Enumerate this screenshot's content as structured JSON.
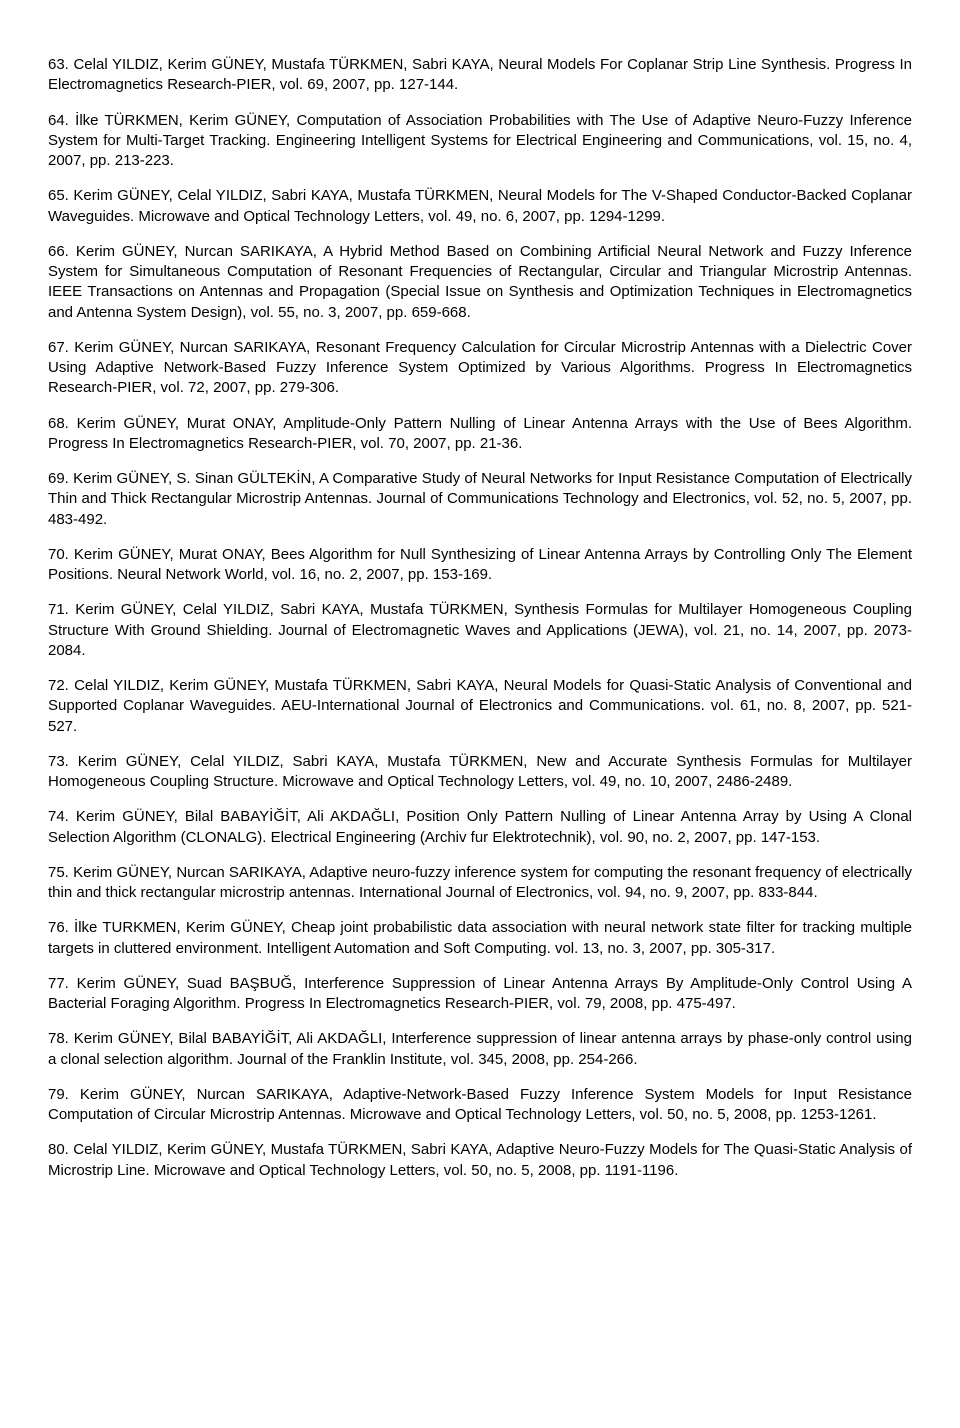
{
  "references": [
    {
      "text": "63. Celal YILDIZ, Kerim GÜNEY, Mustafa TÜRKMEN, Sabri KAYA, Neural Models For Coplanar Strip Line Synthesis. Progress In Electromagnetics Research-PIER, vol. 69, 2007, pp. 127-144."
    },
    {
      "text": "64. İlke TÜRKMEN, Kerim GÜNEY, Computation of Association Probabilities with The Use of Adaptive Neuro-Fuzzy Inference System for Multi-Target Tracking. Engineering Intelligent Systems for Electrical Engineering and Communications, vol. 15, no. 4, 2007, pp. 213-223."
    },
    {
      "text": "65. Kerim GÜNEY, Celal YILDIZ, Sabri KAYA, Mustafa TÜRKMEN, Neural Models for The V-Shaped Conductor-Backed Coplanar Waveguides. Microwave and Optical Technology Letters, vol. 49, no. 6, 2007, pp. 1294-1299."
    },
    {
      "text": "66. Kerim GÜNEY, Nurcan SARIKAYA, A Hybrid Method Based on Combining Artificial Neural Network and Fuzzy Inference System for Simultaneous Computation of Resonant Frequencies of Rectangular, Circular and Triangular Microstrip Antennas. IEEE Transactions on Antennas and Propagation (Special Issue on Synthesis and Optimization Techniques in Electromagnetics and Antenna System Design), vol. 55, no. 3, 2007, pp. 659-668."
    },
    {
      "text": "67. Kerim GÜNEY, Nurcan SARIKAYA, Resonant Frequency Calculation for Circular Microstrip Antennas with a Dielectric Cover Using Adaptive Network-Based Fuzzy Inference System Optimized by Various Algorithms. Progress In Electromagnetics Research-PIER, vol. 72, 2007, pp. 279-306."
    },
    {
      "text": "68. Kerim GÜNEY, Murat ONAY, Amplitude-Only Pattern Nulling of Linear Antenna Arrays with the Use of Bees Algorithm. Progress In Electromagnetics Research-PIER, vol. 70, 2007, pp. 21-36."
    },
    {
      "text": "69. Kerim GÜNEY, S. Sinan GÜLTEKİN, A Comparative Study of Neural Networks for Input Resistance Computation of Electrically Thin and Thick Rectangular Microstrip Antennas. Journal of Communications Technology and Electronics, vol. 52, no. 5, 2007, pp. 483-492."
    },
    {
      "text": "70. Kerim GÜNEY, Murat ONAY, Bees Algorithm for Null Synthesizing of Linear Antenna Arrays by Controlling Only The Element Positions. Neural Network World, vol. 16, no. 2, 2007, pp. 153-169."
    },
    {
      "text": "71. Kerim GÜNEY, Celal YILDIZ, Sabri KAYA, Mustafa TÜRKMEN, Synthesis Formulas for Multilayer Homogeneous Coupling Structure With Ground Shielding. Journal of Electromagnetic Waves and Applications (JEWA), vol. 21, no. 14, 2007, pp. 2073-2084."
    },
    {
      "text": "72. Celal YILDIZ, Kerim GÜNEY, Mustafa TÜRKMEN, Sabri KAYA, Neural Models for Quasi-Static Analysis of Conventional and Supported Coplanar Waveguides. AEU-International Journal of Electronics and Communications. vol. 61, no. 8, 2007, pp. 521-527."
    },
    {
      "text": "73. Kerim GÜNEY, Celal YILDIZ, Sabri KAYA, Mustafa TÜRKMEN, New and Accurate Synthesis Formulas for Multilayer Homogeneous Coupling Structure. Microwave and Optical Technology Letters, vol. 49, no. 10, 2007, 2486-2489."
    },
    {
      "text": "74. Kerim GÜNEY, Bilal BABAYİĞİT, Ali AKDAĞLI, Position Only Pattern Nulling of Linear Antenna Array by Using A Clonal Selection Algorithm (CLONALG). Electrical Engineering (Archiv fur Elektrotechnik), vol. 90, no. 2, 2007, pp. 147-153."
    },
    {
      "text": "75. Kerim GÜNEY, Nurcan SARIKAYA, Adaptive neuro-fuzzy inference system for computing the resonant frequency of electrically thin and thick rectangular microstrip antennas. International Journal of Electronics, vol. 94, no. 9, 2007, pp. 833-844."
    },
    {
      "text": "76. İlke TURKMEN, Kerim GÜNEY, Cheap joint probabilistic data association with neural network state filter for tracking multiple targets in cluttered environment. Intelligent Automation and Soft Computing. vol. 13, no. 3, 2007, pp. 305-317."
    },
    {
      "text": "77. Kerim GÜNEY, Suad BAŞBUĞ, Interference Suppression of Linear Antenna Arrays By Amplitude-Only Control Using A Bacterial Foraging Algorithm. Progress In Electromagnetics Research-PIER, vol. 79, 2008, pp. 475-497."
    },
    {
      "text": "78. Kerim GÜNEY, Bilal BABAYİĞİT, Ali AKDAĞLI, Interference suppression of linear antenna arrays by phase-only control using a clonal selection algorithm. Journal of the Franklin Institute, vol. 345, 2008, pp. 254-266."
    },
    {
      "text": "79. Kerim GÜNEY, Nurcan SARIKAYA, Adaptive-Network-Based Fuzzy Inference System Models for Input Resistance Computation of Circular Microstrip Antennas. Microwave and Optical Technology Letters, vol. 50, no. 5, 2008, pp. 1253-1261."
    },
    {
      "text": "80. Celal YILDIZ, Kerim GÜNEY, Mustafa TÜRKMEN, Sabri KAYA, Adaptive Neuro-Fuzzy Models for The Quasi-Static Analysis of Microstrip Line. Microwave and Optical Technology Letters, vol. 50, no. 5, 2008, pp. 1191-1196."
    }
  ]
}
